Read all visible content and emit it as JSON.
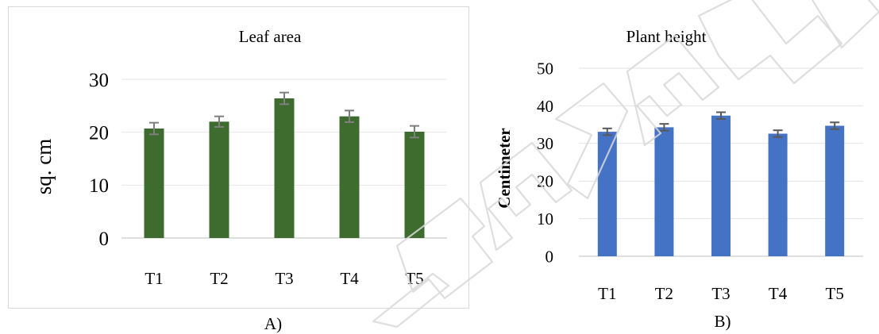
{
  "panels": [
    {
      "caption": "A)",
      "chart_data": {
        "type": "bar",
        "title": "Leaf area",
        "xlabel": "",
        "ylabel": "sq. cm",
        "ylim": [
          0,
          30
        ],
        "yticks": [
          0,
          10,
          20,
          30
        ],
        "grid": true,
        "legend": "none",
        "categories": [
          "T1",
          "T2",
          "T3",
          "T4",
          "T5"
        ],
        "values": [
          20.7,
          22.0,
          26.4,
          23.0,
          20.1
        ],
        "errors": [
          1.1,
          1.0,
          1.1,
          1.1,
          1.1
        ],
        "bar_color": "#3e6b2e",
        "error_color": "#7f7f7f"
      }
    },
    {
      "caption": "B)",
      "chart_data": {
        "type": "bar",
        "title": "Plant height",
        "xlabel": "",
        "ylabel": "Centimeter",
        "ylim": [
          0,
          50
        ],
        "yticks": [
          0,
          10,
          20,
          30,
          40,
          50
        ],
        "grid": true,
        "legend": "none",
        "categories": [
          "T1",
          "T2",
          "T3",
          "T4",
          "T5"
        ],
        "values": [
          33.1,
          34.3,
          37.4,
          32.6,
          34.7
        ],
        "errors": [
          0.9,
          0.9,
          0.9,
          0.9,
          0.9
        ],
        "bar_color": "#4472c4",
        "error_color": "#595959"
      }
    }
  ]
}
